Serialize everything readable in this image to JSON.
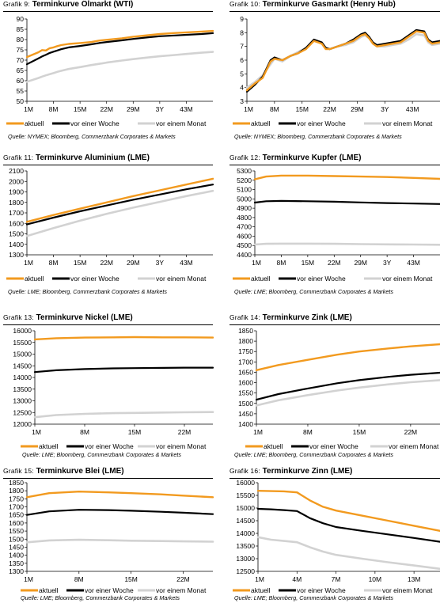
{
  "colors": {
    "aktuell": "#f29a1f",
    "woche": "#000000",
    "monat": "#d2d2d2",
    "grid": "#9a9a9a"
  },
  "panels": [
    {
      "pre": "Grafik 9:",
      "title": "Terminkurve Ölmarkt (WTI)",
      "source": "Quelle: NYMEX; Bloomberg, Commerzbank Corporates & Markets",
      "chart_data": {
        "type": "line",
        "x": [
          1,
          4,
          5,
          6,
          7,
          8,
          9,
          10,
          12,
          15,
          18,
          20,
          22,
          26,
          29,
          33,
          36,
          40,
          43,
          47,
          50
        ],
        "xticks": [
          "1M",
          "8M",
          "15M",
          "22M",
          "29M",
          "3Y",
          "43M"
        ],
        "xtick_vals": [
          1,
          8,
          15,
          22,
          29,
          36,
          43
        ],
        "xlim": [
          1,
          50
        ],
        "ylim": [
          50,
          90
        ],
        "yticks": [
          50,
          55,
          60,
          65,
          70,
          75,
          80,
          85,
          90
        ],
        "series": [
          {
            "name": "aktuell",
            "key": "aktuell",
            "values": [
              71.5,
              73.8,
              74.9,
              74.7,
              75.8,
              76.2,
              76.8,
              77.3,
              77.9,
              78.3,
              78.8,
              79.5,
              79.9,
              80.6,
              81.4,
              82.1,
              82.7,
              83.2,
              83.5,
              83.9,
              84.2
            ]
          },
          {
            "name": "vor einer Woche",
            "key": "woche",
            "values": [
              68.0,
              70.8,
              71.8,
              72.6,
              73.5,
              74.1,
              74.7,
              75.3,
              76.2,
              76.9,
              77.7,
              78.3,
              78.8,
              79.6,
              80.3,
              81.1,
              81.6,
              82.0,
              82.3,
              82.7,
              83.1
            ]
          },
          {
            "name": "vor einem Monat",
            "key": "monat",
            "values": [
              59.5,
              61.3,
              62.0,
              62.6,
              63.2,
              63.7,
              64.3,
              64.8,
              65.7,
              66.6,
              67.6,
              68.2,
              68.8,
              69.8,
              70.5,
              71.3,
              71.9,
              72.5,
              73.0,
              73.6,
              74.0
            ]
          }
        ]
      }
    },
    {
      "pre": "Grafik 10:",
      "title": "Terminkurve Gasmarkt (Henry Hub)",
      "source": "Quelle: NYMEX; Bloomberg, Commerzbank Corporates & Markets",
      "chart_data": {
        "type": "line",
        "x": [
          1,
          3,
          5,
          7,
          8,
          10,
          12,
          14,
          16,
          18,
          20,
          21,
          22,
          24,
          26,
          28,
          30,
          31,
          32,
          33,
          34,
          36,
          38,
          40,
          42,
          44,
          46,
          47,
          48,
          50
        ],
        "xticks": [
          "1M",
          "8M",
          "15M",
          "22M",
          "29M",
          "3Y",
          "43M"
        ],
        "xtick_vals": [
          1,
          8,
          15,
          22,
          29,
          36,
          43
        ],
        "xlim": [
          1,
          50
        ],
        "ylim": [
          3,
          9
        ],
        "yticks": [
          3,
          4,
          5,
          6,
          7,
          8,
          9
        ],
        "series": [
          {
            "name": "aktuell",
            "key": "aktuell",
            "values": [
              3.8,
              4.3,
              4.7,
              5.9,
              6.1,
              6.0,
              6.3,
              6.5,
              6.8,
              7.4,
              7.2,
              6.8,
              6.8,
              7.0,
              7.2,
              7.4,
              7.8,
              7.9,
              7.6,
              7.2,
              7.0,
              7.1,
              7.2,
              7.3,
              7.7,
              8.1,
              8.0,
              7.4,
              7.2,
              7.3
            ]
          },
          {
            "name": "vor einer Woche",
            "key": "woche",
            "values": [
              3.7,
              4.2,
              4.8,
              6.0,
              6.2,
              6.0,
              6.3,
              6.5,
              6.9,
              7.5,
              7.3,
              6.9,
              6.8,
              7.0,
              7.2,
              7.5,
              7.9,
              8.0,
              7.7,
              7.3,
              7.1,
              7.2,
              7.3,
              7.4,
              7.8,
              8.2,
              8.1,
              7.5,
              7.3,
              7.4
            ]
          },
          {
            "name": "vor einem Monat",
            "key": "monat",
            "values": [
              4.0,
              4.4,
              4.9,
              5.7,
              6.1,
              5.9,
              6.3,
              6.6,
              6.9,
              7.5,
              7.3,
              6.9,
              6.8,
              7.0,
              7.1,
              7.3,
              7.7,
              7.8,
              7.6,
              7.2,
              7.0,
              7.0,
              7.1,
              7.2,
              7.5,
              7.9,
              7.8,
              7.3,
              7.1,
              7.2
            ]
          }
        ]
      }
    },
    {
      "pre": "Grafik 11:",
      "title": "Terminkurve Aluminium (LME)",
      "source": "Quelle: LME; Bloomberg, Commerzbank Corporates & Markets",
      "chart_data": {
        "type": "line",
        "x": [
          1,
          8,
          15,
          22,
          29,
          36,
          43,
          50
        ],
        "xticks": [
          "1M",
          "8M",
          "15M",
          "22M",
          "29M",
          "3Y",
          "43M"
        ],
        "xtick_vals": [
          1,
          8,
          15,
          22,
          29,
          36,
          43
        ],
        "xlim": [
          1,
          50
        ],
        "ylim": [
          1300,
          2100
        ],
        "yticks": [
          1300,
          1400,
          1500,
          1600,
          1700,
          1800,
          1900,
          2000,
          2100
        ],
        "series": [
          {
            "name": "aktuell",
            "key": "aktuell",
            "values": [
              1615,
              1680,
              1740,
              1800,
              1860,
              1915,
              1970,
              2025
            ]
          },
          {
            "name": "vor einer Woche",
            "key": "woche",
            "values": [
              1590,
              1655,
              1715,
              1770,
              1825,
              1875,
              1925,
              1970
            ]
          },
          {
            "name": "vor einem Monat",
            "key": "monat",
            "values": [
              1480,
              1555,
              1625,
              1690,
              1750,
              1805,
              1860,
              1910
            ]
          }
        ]
      }
    },
    {
      "pre": "Grafik 12:",
      "title": "Terminkurve Kupfer (LME)",
      "source": "Quelle: LME; Bloomberg, Commerzbank Corporates & Markets",
      "chart_data": {
        "type": "line",
        "x": [
          1,
          4,
          8,
          15,
          22,
          29,
          36,
          43,
          50
        ],
        "xticks": [
          "1M",
          "8M",
          "15M",
          "22M",
          "29M",
          "3Y",
          "43M"
        ],
        "xtick_vals": [
          1,
          8,
          15,
          22,
          29,
          36,
          43
        ],
        "xlim": [
          1,
          50
        ],
        "ylim": [
          4400,
          5300
        ],
        "yticks": [
          4400,
          4500,
          4600,
          4700,
          4800,
          4900,
          5000,
          5100,
          5200,
          5300
        ],
        "series": [
          {
            "name": "aktuell",
            "key": "aktuell",
            "values": [
              5210,
              5240,
              5250,
              5250,
              5245,
              5240,
              5235,
              5225,
              5215
            ]
          },
          {
            "name": "vor einer Woche",
            "key": "woche",
            "values": [
              4960,
              4975,
              4978,
              4975,
              4970,
              4962,
              4955,
              4950,
              4945
            ]
          },
          {
            "name": "vor einem Monat",
            "key": "monat",
            "values": [
              4510,
              4518,
              4520,
              4520,
              4518,
              4515,
              4512,
              4510,
              4508
            ]
          }
        ]
      }
    },
    {
      "pre": "Grafik 13:",
      "title": "Terminkurve Nickel (LME)",
      "source": "Quelle: LME; Bloomberg, Commerzbank Corporates & Markets",
      "chart_data": {
        "type": "line",
        "x": [
          1,
          4,
          8,
          12,
          15,
          19,
          22,
          26
        ],
        "xticks": [
          "1M",
          "8M",
          "15M",
          "22M"
        ],
        "xtick_vals": [
          1,
          8,
          15,
          22
        ],
        "xlim": [
          1,
          26
        ],
        "ylim": [
          12000,
          16000
        ],
        "yticks": [
          12000,
          12500,
          13000,
          13500,
          14000,
          14500,
          15000,
          15500,
          16000
        ],
        "series": [
          {
            "name": "aktuell",
            "key": "aktuell",
            "values": [
              15630,
              15680,
              15710,
              15720,
              15730,
              15720,
              15720,
              15710
            ]
          },
          {
            "name": "vor einer Woche",
            "key": "woche",
            "values": [
              14230,
              14310,
              14360,
              14390,
              14400,
              14410,
              14420,
              14420
            ]
          },
          {
            "name": "vor einem Monat",
            "key": "monat",
            "values": [
              12300,
              12390,
              12440,
              12470,
              12480,
              12500,
              12510,
              12520
            ]
          }
        ]
      }
    },
    {
      "pre": "Grafik 14:",
      "title": "Terminkurve Zink (LME)",
      "source": "Quelle: LME; Bloomberg, Commerzbank Corporates & Markets",
      "chart_data": {
        "type": "line",
        "x": [
          1,
          4,
          8,
          12,
          15,
          19,
          22,
          26
        ],
        "xticks": [
          "1M",
          "8M",
          "15M",
          "22M"
        ],
        "xtick_vals": [
          1,
          8,
          15,
          22
        ],
        "xlim": [
          1,
          26
        ],
        "ylim": [
          1400,
          1850
        ],
        "yticks": [
          1400,
          1450,
          1500,
          1550,
          1600,
          1650,
          1700,
          1750,
          1800,
          1850
        ],
        "series": [
          {
            "name": "aktuell",
            "key": "aktuell",
            "values": [
              1660,
              1685,
              1710,
              1735,
              1750,
              1765,
              1775,
              1785
            ]
          },
          {
            "name": "vor einer Woche",
            "key": "woche",
            "values": [
              1518,
              1545,
              1572,
              1597,
              1612,
              1628,
              1638,
              1648
            ]
          },
          {
            "name": "vor einem Monat",
            "key": "monat",
            "values": [
              1490,
              1515,
              1540,
              1562,
              1576,
              1592,
              1602,
              1612
            ]
          }
        ]
      }
    },
    {
      "pre": "Grafik 15:",
      "title": "Terminkurve Blei (LME)",
      "source": "Quelle: LME; Bloomberg, Commerzbank Corporates & Markets",
      "chart_data": {
        "type": "line",
        "x": [
          1,
          4,
          8,
          12,
          15,
          19,
          22,
          26
        ],
        "xticks": [
          "1M",
          "8M",
          "15M",
          "22M"
        ],
        "xtick_vals": [
          1,
          8,
          15,
          22
        ],
        "xlim": [
          1,
          26
        ],
        "ylim": [
          1300,
          1850
        ],
        "yticks": [
          1300,
          1350,
          1400,
          1450,
          1500,
          1550,
          1600,
          1650,
          1700,
          1750,
          1800,
          1850
        ],
        "series": [
          {
            "name": "aktuell",
            "key": "aktuell",
            "values": [
              1760,
              1785,
              1795,
              1790,
              1785,
              1778,
              1770,
              1760
            ]
          },
          {
            "name": "vor einer Woche",
            "key": "woche",
            "values": [
              1650,
              1672,
              1682,
              1680,
              1676,
              1670,
              1664,
              1655
            ]
          },
          {
            "name": "vor einem Monat",
            "key": "monat",
            "values": [
              1480,
              1492,
              1496,
              1493,
              1490,
              1488,
              1486,
              1484
            ]
          }
        ]
      }
    },
    {
      "pre": "Grafik 16:",
      "title": "Terminkurve Zinn (LME)",
      "source": "Quelle: LME; Bloomberg, Commerzbank Corporates & Markets",
      "chart_data": {
        "type": "line",
        "x": [
          1,
          2,
          3,
          4,
          5,
          6,
          7,
          9,
          11,
          13,
          15
        ],
        "xticks": [
          "1M",
          "4M",
          "7M",
          "10M",
          "13M"
        ],
        "xtick_vals": [
          1,
          4,
          7,
          10,
          13
        ],
        "xlim": [
          1,
          15
        ],
        "ylim": [
          12500,
          16000
        ],
        "yticks": [
          12500,
          13000,
          13500,
          14000,
          14500,
          15000,
          15500,
          16000
        ],
        "series": [
          {
            "name": "aktuell",
            "key": "aktuell",
            "values": [
              15680,
              15670,
              15660,
              15620,
              15300,
              15050,
              14900,
              14700,
              14500,
              14300,
              14100
            ]
          },
          {
            "name": "vor einer Woche",
            "key": "woche",
            "values": [
              14970,
              14950,
              14920,
              14880,
              14600,
              14400,
              14250,
              14100,
              13960,
              13820,
              13670
            ]
          },
          {
            "name": "vor einem Monat",
            "key": "monat",
            "values": [
              13850,
              13750,
              13700,
              13650,
              13450,
              13280,
              13150,
              13000,
              12860,
              12730,
              12600
            ]
          }
        ]
      }
    }
  ]
}
